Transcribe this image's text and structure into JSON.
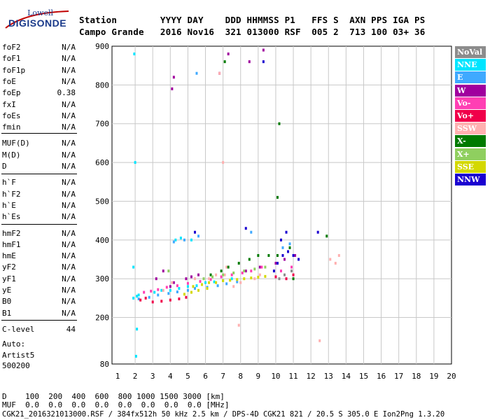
{
  "logo": {
    "line1": "Lowell",
    "line2": "DIGISONDE"
  },
  "header": {
    "labels": "Station        YYYY DAY    DDD HHMMSS P1   FFS S  AXN PPS IGA PS",
    "values": "Campo Grande   2016 Nov16  321 013000 RSF  005 2  713 100 03+ 36"
  },
  "params": [
    {
      "name": "foF2",
      "value": "N/A"
    },
    {
      "name": "foF1",
      "value": "N/A"
    },
    {
      "name": "foF1p",
      "value": "N/A"
    },
    {
      "name": "foE",
      "value": "N/A"
    },
    {
      "name": "foEp",
      "value": "0.38"
    },
    {
      "name": "fxI",
      "value": "N/A"
    },
    {
      "name": "foEs",
      "value": "N/A"
    },
    {
      "name": "fmin",
      "value": "N/A"
    },
    {
      "name": "MUF(D)",
      "value": "N/A"
    },
    {
      "name": "M(D)",
      "value": "N/A"
    },
    {
      "name": "D",
      "value": "N/A"
    },
    {
      "name": "h`F",
      "value": "N/A"
    },
    {
      "name": "h`F2",
      "value": "N/A"
    },
    {
      "name": "h`E",
      "value": "N/A"
    },
    {
      "name": "h`Es",
      "value": "N/A"
    },
    {
      "name": "hmF2",
      "value": "N/A"
    },
    {
      "name": "hmF1",
      "value": "N/A"
    },
    {
      "name": "hmE",
      "value": "N/A"
    },
    {
      "name": "yF2",
      "value": "N/A"
    },
    {
      "name": "yF1",
      "value": "N/A"
    },
    {
      "name": "yE",
      "value": "N/A"
    },
    {
      "name": "B0",
      "value": "N/A"
    },
    {
      "name": "B1",
      "value": "N/A"
    },
    {
      "name": "C-level",
      "value": "44"
    }
  ],
  "auto": {
    "line1": "Auto:",
    "line2": "Artist5",
    "line3": "500200"
  },
  "legend": [
    {
      "label": "NoVal",
      "color": "#8c8c8c"
    },
    {
      "label": "NNE",
      "color": "#00e5ff"
    },
    {
      "label": "E",
      "color": "#3fa9ff"
    },
    {
      "label": "W",
      "color": "#a0009e"
    },
    {
      "label": "Vo-",
      "color": "#ff3fb4"
    },
    {
      "label": "Vo+",
      "color": "#f0004a"
    },
    {
      "label": "SSW",
      "color": "#ffb0b0"
    },
    {
      "label": "X-",
      "color": "#007a00"
    },
    {
      "label": "X+",
      "color": "#8fcf5f"
    },
    {
      "label": "SSE",
      "color": "#d4d800"
    },
    {
      "label": "NNW",
      "color": "#1a00d0"
    }
  ],
  "bottom": {
    "d_line": "D    100  200  400  600  800 1000 1500 3000 [km]",
    "muf_line": "MUF  0.0  0.0  0.0  0.0  0.0  0.0  0.0  0.0 [MHz]",
    "footer": "CGK21_2016321013000.RSF / 384fx512h 50 kHz 2.5 km / DPS-4D CGK21 821 / 20.5 S 305.0 E Ion2Png 1.3.20"
  },
  "chart_data": {
    "type": "scatter",
    "title": "",
    "xlabel": "",
    "ylabel": "",
    "xlim": [
      1,
      20
    ],
    "ylim": [
      80,
      900
    ],
    "x_ticks": [
      1,
      2,
      3,
      4,
      5,
      6,
      7,
      8,
      9,
      10,
      11,
      12,
      13,
      14,
      15,
      16,
      17,
      18,
      19,
      20
    ],
    "y_ticks": [
      80,
      200,
      300,
      400,
      500,
      600,
      700,
      800,
      900
    ],
    "grid": true,
    "legend_position": "right",
    "series": [
      {
        "name": "NNE",
        "x": [
          1.9,
          2.1,
          2.2,
          3.1,
          3.5,
          4.0,
          4.5,
          5.0,
          5.5,
          6.0,
          6.5,
          7.0,
          7.5,
          1.95,
          2.0,
          2.05,
          4.3,
          4.6,
          5.2,
          1.9,
          2.1
        ],
        "y": [
          250,
          255,
          258,
          265,
          270,
          270,
          275,
          280,
          282,
          290,
          292,
          295,
          300,
          880,
          600,
          100,
          400,
          405,
          400,
          330,
          170
        ]
      },
      {
        "name": "E",
        "x": [
          2.2,
          2.8,
          3.3,
          3.9,
          4.4,
          5.0,
          5.4,
          6.1,
          6.7,
          7.2,
          7.8,
          4.2,
          4.8,
          5.6,
          8.6,
          10.4,
          10.8,
          5.5
        ],
        "y": [
          248,
          252,
          258,
          262,
          266,
          270,
          275,
          278,
          282,
          287,
          292,
          395,
          400,
          410,
          420,
          380,
          390,
          830
        ]
      },
      {
        "name": "W",
        "x": [
          4.0,
          4.2,
          4.9,
          5.2,
          5.6,
          8.3,
          9.1,
          10.0,
          10.5,
          11.1,
          4.1,
          4.2,
          6.8,
          7.3,
          8.5,
          9.3,
          3.2,
          3.6
        ],
        "y": [
          280,
          290,
          300,
          305,
          310,
          320,
          330,
          340,
          350,
          360,
          790,
          820,
          830,
          880,
          860,
          890,
          300,
          320
        ]
      },
      {
        "name": "Vo-",
        "x": [
          2.5,
          2.9,
          3.3,
          3.8,
          4.4,
          5.0,
          5.7,
          6.3,
          6.9,
          7.5,
          8.1,
          8.6,
          9.2,
          10.3,
          10.9
        ],
        "y": [
          265,
          268,
          272,
          278,
          282,
          288,
          293,
          298,
          305,
          310,
          315,
          320,
          330,
          320,
          330
        ]
      },
      {
        "name": "Vo+",
        "x": [
          3.0,
          3.5,
          4.0,
          4.5,
          4.9,
          10.0,
          10.6,
          11.0,
          2.3,
          2.6
        ],
        "y": [
          240,
          242,
          245,
          248,
          252,
          305,
          300,
          310,
          245,
          250
        ]
      },
      {
        "name": "SSW",
        "x": [
          3.6,
          4.1,
          5.4,
          6.2,
          6.6,
          6.8,
          7.0,
          7.1,
          7.2,
          7.6,
          8.0,
          8.8,
          9.1,
          13.1,
          13.4,
          13.6,
          7.9,
          12.5
        ],
        "y": [
          270,
          290,
          300,
          300,
          310,
          830,
          600,
          310,
          330,
          280,
          290,
          300,
          310,
          350,
          340,
          360,
          180,
          140
        ]
      },
      {
        "name": "X-",
        "x": [
          6.3,
          6.9,
          7.3,
          7.9,
          8.5,
          9.0,
          9.6,
          10.1,
          10.8,
          11.0,
          12.9,
          10.1,
          10.2,
          7.1
        ],
        "y": [
          310,
          320,
          330,
          340,
          350,
          360,
          360,
          360,
          380,
          300,
          410,
          510,
          700,
          860
        ]
      },
      {
        "name": "X+",
        "x": [
          5.9,
          6.4,
          7.0,
          7.6,
          8.2,
          8.8,
          9.4,
          3.9
        ],
        "y": [
          300,
          305,
          310,
          315,
          320,
          325,
          330,
          320
        ]
      },
      {
        "name": "SSE",
        "x": [
          5.3,
          5.8,
          6.2,
          6.6,
          7.0,
          7.4,
          7.8,
          8.2,
          8.6,
          9.0,
          9.4,
          4.8,
          5.2,
          5.6,
          6.1
        ],
        "y": [
          280,
          285,
          290,
          290,
          295,
          296,
          298,
          300,
          302,
          304,
          306,
          260,
          265,
          270,
          275
        ]
      },
      {
        "name": "NNW",
        "x": [
          9.9,
          10.1,
          10.4,
          10.7,
          11.0,
          11.3,
          10.3,
          10.6,
          12.4,
          9.3,
          8.3,
          5.4
        ],
        "y": [
          320,
          340,
          360,
          370,
          360,
          350,
          400,
          420,
          420,
          860,
          430,
          420
        ]
      },
      {
        "name": "NoVal",
        "x": [
          10.2,
          10.5,
          10.9
        ],
        "y": [
          300,
          310,
          320
        ]
      }
    ]
  }
}
